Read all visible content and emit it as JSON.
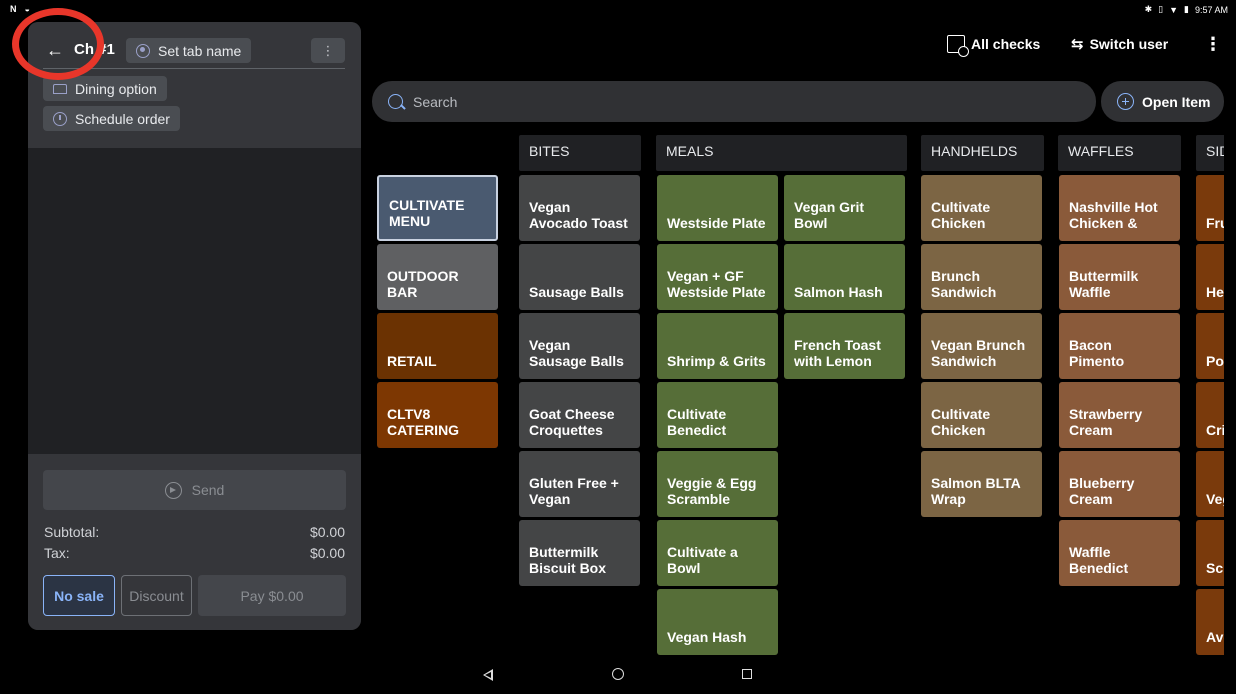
{
  "status_bar": {
    "left_icons": [
      "n-icon",
      "shield-icon"
    ],
    "time": "9:57 AM"
  },
  "order_panel": {
    "check_title": "Ch #1",
    "tab_name_label": "Set tab name",
    "more_label": "⋮",
    "dining_option_label": "Dining option",
    "schedule_order_label": "Schedule order",
    "send_label": "Send",
    "subtotal_label": "Subtotal:",
    "subtotal_value": "$0.00",
    "tax_label": "Tax:",
    "tax_value": "$0.00",
    "no_sale_label": "No sale",
    "discount_label": "Discount",
    "pay_label": "Pay $0.00"
  },
  "header": {
    "all_checks_label": "All checks",
    "switch_user_label": "Switch user",
    "more_label": "⋮"
  },
  "search": {
    "placeholder": "Search",
    "open_item_label": "Open Item"
  },
  "colors": {
    "highlight": "#e8362a",
    "accent": "#8ab4f8",
    "cultivate_menu": "#4a5a70",
    "outdoor_bar": "#5f6062",
    "retail": "#6b3202",
    "catering": "#7d3702",
    "bites": "#444546",
    "meals": "#566e38",
    "handhelds": "#7c6544",
    "waffles": "#8a5a3a",
    "sides": "#7a3a0c"
  },
  "menu_groups": [
    {
      "label": "CULTIVATE MENU",
      "selected": true
    },
    {
      "label": "OUTDOOR BAR",
      "selected": false
    },
    {
      "label": "RETAIL",
      "selected": false
    },
    {
      "label": "CLTV8 CATERING",
      "selected": false
    }
  ],
  "categories": [
    {
      "name": "BITES",
      "items": [
        "Vegan Avocado Toast",
        "Sausage Balls",
        "Vegan Sausage Balls",
        "Goat Cheese Croquettes",
        "Gluten Free + Vegan Beignets",
        "Buttermilk Biscuit Box"
      ]
    },
    {
      "name": "MEALS",
      "items": [
        "Westside Plate",
        "Vegan Grit Bowl",
        "Vegan + GF Westside Plate",
        "Salmon Hash",
        "Shrimp & Grits",
        "French Toast with Lemon W...",
        "Cultivate Benedict",
        "Veggie & Egg Scramble",
        "Cultivate a Bowl",
        "Vegan Hash"
      ]
    },
    {
      "name": "HANDHELDS",
      "items": [
        "Cultivate Chicken Biscuit",
        "Brunch Sandwich",
        "Vegan Brunch Sandwich",
        "Cultivate Chicken Sand...",
        "Salmon BLTA Wrap"
      ]
    },
    {
      "name": "WAFFLES",
      "items": [
        "Nashville Hot Chicken & Waf...",
        "Buttermilk Waffle",
        "Bacon Pimento Cheese Waffle",
        "Strawberry Cream Chees...",
        "Blueberry Cream Chees...",
        "Waffle Benedict"
      ]
    },
    {
      "name": "SID",
      "items": [
        "Fru",
        "He Tor",
        "Po Ca",
        "Cri",
        "Veg Gri",
        "Sci Pin",
        "Avo"
      ]
    }
  ]
}
